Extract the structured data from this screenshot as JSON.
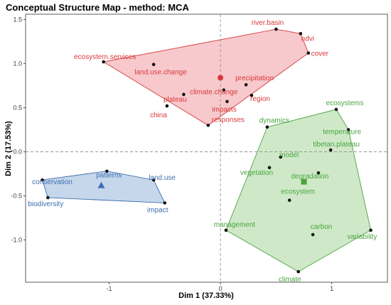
{
  "chart_data": {
    "type": "scatter",
    "title": "Conceptual Structure Map - method: MCA",
    "xlabel": "Dim 1 (37.33%)",
    "ylabel": "Dim 2 (17.53%)",
    "xlim": [
      -1.75,
      1.5
    ],
    "ylim": [
      -1.48,
      1.56
    ],
    "xticks": [
      -1,
      0,
      1
    ],
    "yticks": [
      -1.0,
      -0.5,
      0.0,
      0.5,
      1.0,
      1.5
    ],
    "ytick_labels": [
      "-1.0",
      "-0.5",
      "0.0",
      "0.5",
      "1.0",
      "1.5"
    ],
    "xtick_labels": [
      "-1",
      "0",
      "1"
    ],
    "reference_lines": {
      "x": 0,
      "y": 0,
      "style": "dashed"
    },
    "grid": false,
    "clusters": [
      {
        "id": 1,
        "color": "#d9383a",
        "fill": "#f4b7bb",
        "centroid": {
          "x": 0.0,
          "y": 0.84,
          "shape": "circle"
        },
        "hull": [
          "ecosystem.services",
          "river.basin",
          "ndvi",
          "cover",
          "responses"
        ],
        "points": [
          {
            "label": "ecosystem.services",
            "x": -1.05,
            "y": 1.02
          },
          {
            "label": "river.basin",
            "x": 0.5,
            "y": 1.39
          },
          {
            "label": "ndvi",
            "x": 0.72,
            "y": 1.34
          },
          {
            "label": "cover",
            "x": 0.79,
            "y": 1.12
          },
          {
            "label": "land.use.change",
            "x": -0.6,
            "y": 0.99
          },
          {
            "label": "climate.change",
            "x": 0.03,
            "y": 0.7
          },
          {
            "label": "precipitation",
            "x": 0.23,
            "y": 0.76
          },
          {
            "label": "plateau",
            "x": -0.33,
            "y": 0.65
          },
          {
            "label": "region",
            "x": 0.28,
            "y": 0.64
          },
          {
            "label": "impacts",
            "x": 0.06,
            "y": 0.57
          },
          {
            "label": "china",
            "x": -0.48,
            "y": 0.52
          },
          {
            "label": "responses",
            "x": -0.11,
            "y": 0.3
          }
        ]
      },
      {
        "id": 2,
        "color": "#4aa43f",
        "fill": "#bfe1b5",
        "centroid": {
          "x": 0.75,
          "y": -0.34,
          "shape": "square"
        },
        "hull": [
          "ecosystems",
          "temperature",
          "variability",
          "climate",
          "management",
          "dynamics"
        ],
        "points": [
          {
            "label": "ecosystems",
            "x": 1.04,
            "y": 0.48
          },
          {
            "label": "dynamics",
            "x": 0.42,
            "y": 0.28
          },
          {
            "label": "temperature",
            "x": 1.15,
            "y": 0.25
          },
          {
            "label": "tibetan.plateau",
            "x": 0.99,
            "y": 0.02
          },
          {
            "label": "model",
            "x": 0.54,
            "y": -0.06
          },
          {
            "label": "vegetation",
            "x": 0.44,
            "y": -0.18
          },
          {
            "label": "degradation",
            "x": 0.88,
            "y": -0.24
          },
          {
            "label": "ecosystem",
            "x": 0.62,
            "y": -0.55
          },
          {
            "label": "carbon",
            "x": 0.83,
            "y": -0.94
          },
          {
            "label": "variability",
            "x": 1.35,
            "y": -0.89
          },
          {
            "label": "management",
            "x": 0.05,
            "y": -0.89
          },
          {
            "label": "climate",
            "x": 0.7,
            "y": -1.36
          }
        ]
      },
      {
        "id": 3,
        "color": "#3c6eaf",
        "fill": "#b3c9e6",
        "centroid": {
          "x": -1.07,
          "y": -0.38,
          "shape": "triangle"
        },
        "hull": [
          "conservation",
          "patterns",
          "land.use",
          "impact",
          "biodiversity"
        ],
        "points": [
          {
            "label": "patterns",
            "x": -1.02,
            "y": -0.22
          },
          {
            "label": "land.use",
            "x": -0.6,
            "y": -0.32
          },
          {
            "label": "conservation",
            "x": -1.6,
            "y": -0.32
          },
          {
            "label": "biodiversity",
            "x": -1.55,
            "y": -0.52
          },
          {
            "label": "impact",
            "x": -0.5,
            "y": -0.58
          }
        ]
      }
    ]
  }
}
